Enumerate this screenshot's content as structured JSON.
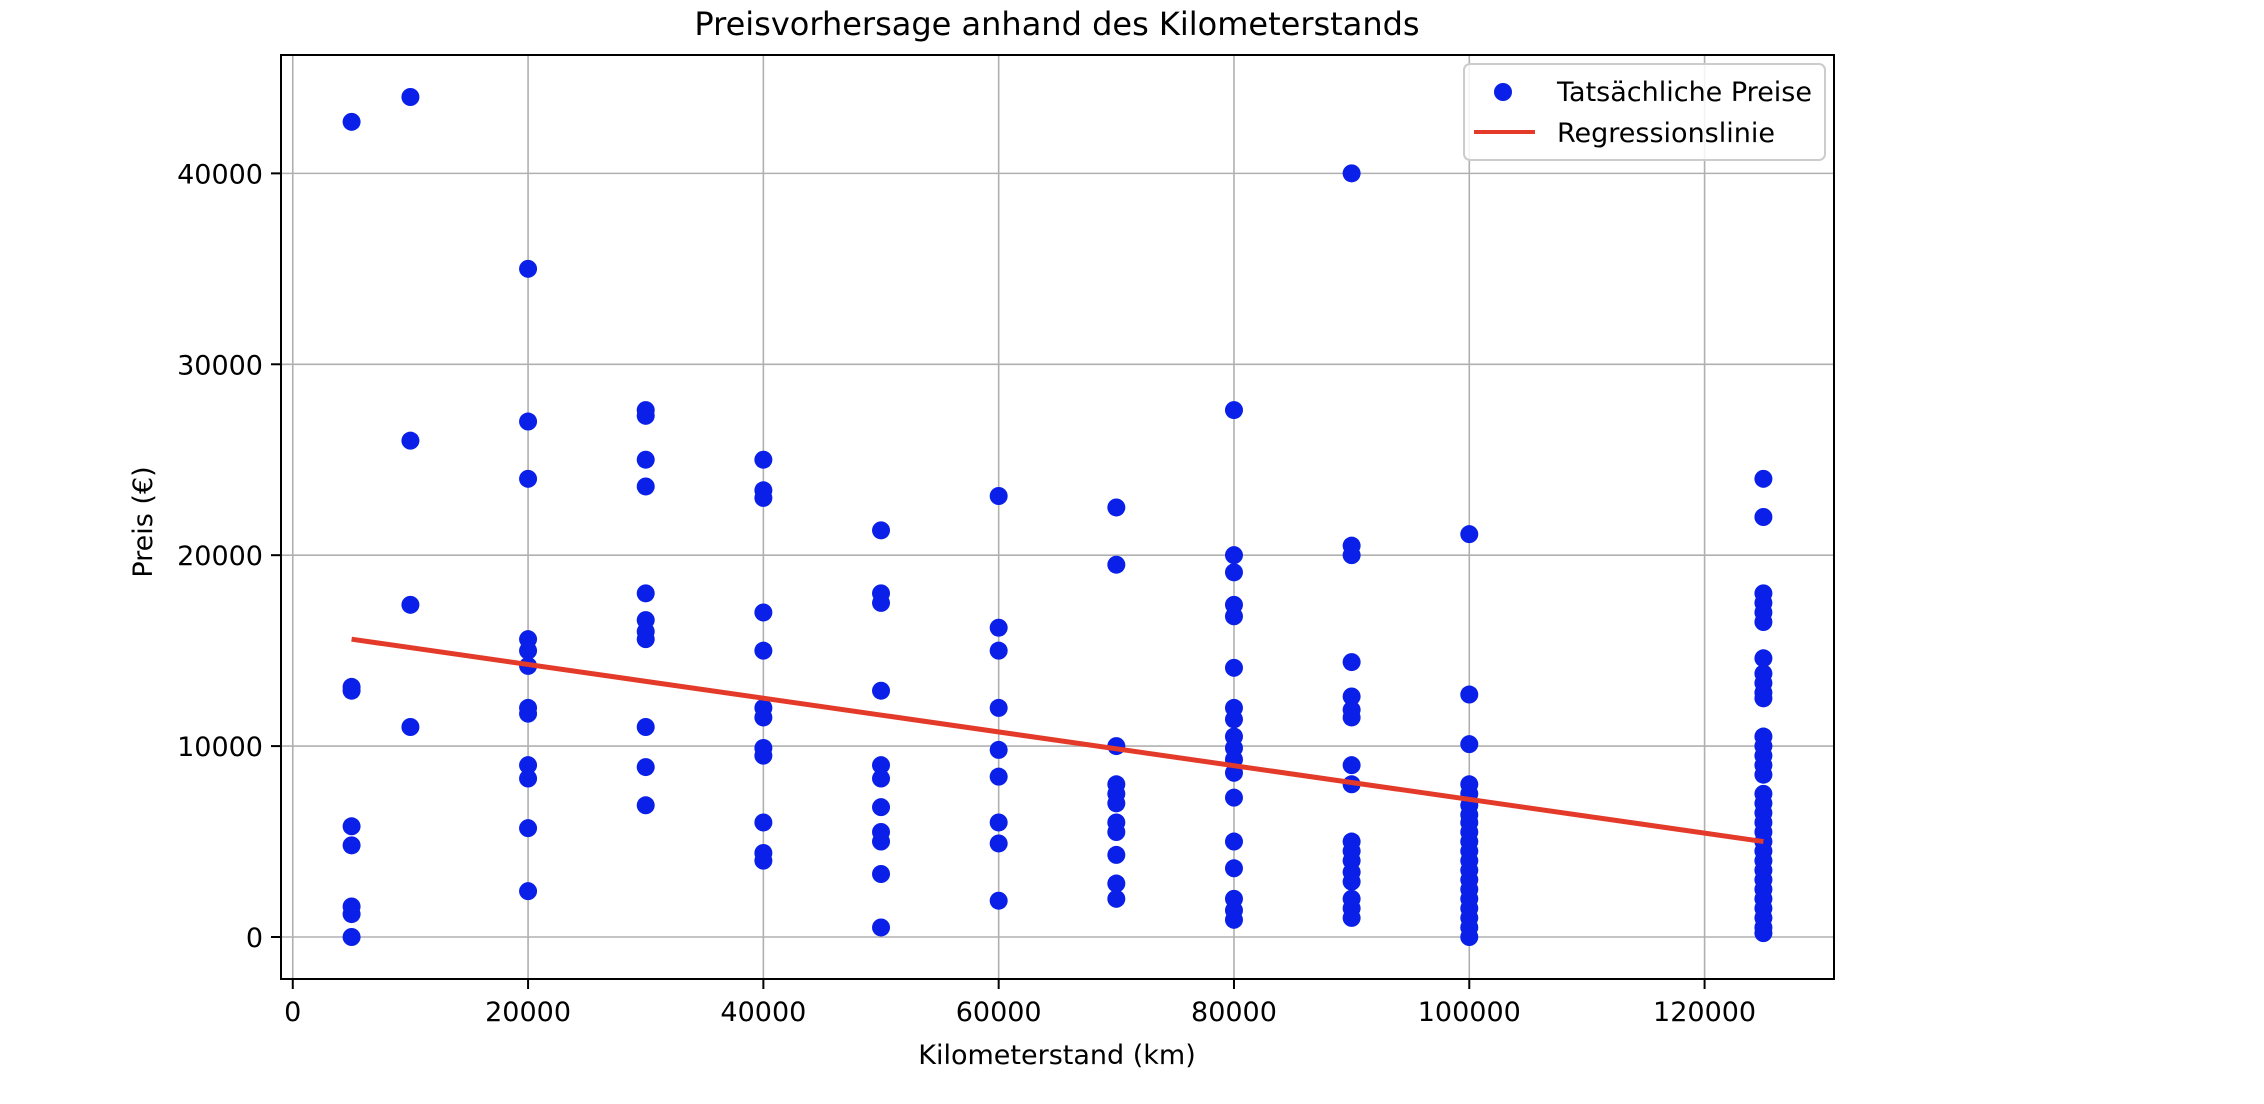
{
  "chart_data": {
    "type": "scatter",
    "title": "Preisvorhersage anhand des Kilometerstands",
    "xlabel": "Kilometerstand (km)",
    "ylabel": "Preis (€)",
    "xlim": [
      -1000,
      131000
    ],
    "ylim": [
      -2200,
      46200
    ],
    "xticks": [
      0,
      20000,
      40000,
      60000,
      80000,
      100000,
      120000
    ],
    "yticks": [
      0,
      10000,
      20000,
      30000,
      40000
    ],
    "xtick_labels": [
      "0",
      "20000",
      "40000",
      "60000",
      "80000",
      "100000",
      "120000"
    ],
    "ytick_labels": [
      "0",
      "10000",
      "20000",
      "30000",
      "40000"
    ],
    "grid": true,
    "legend_position": "top-right",
    "colors": {
      "scatter": "#0a1fe8",
      "regression": "#e33a2a"
    },
    "series": [
      {
        "name": "Tatsächliche Preise",
        "type": "scatter",
        "points": [
          [
            5000,
            42700
          ],
          [
            5000,
            13100
          ],
          [
            5000,
            12900
          ],
          [
            5000,
            5800
          ],
          [
            5000,
            4800
          ],
          [
            5000,
            1600
          ],
          [
            5000,
            1200
          ],
          [
            5000,
            0
          ],
          [
            10000,
            44000
          ],
          [
            10000,
            26000
          ],
          [
            10000,
            17400
          ],
          [
            10000,
            11000
          ],
          [
            20000,
            35000
          ],
          [
            20000,
            27000
          ],
          [
            20000,
            24000
          ],
          [
            20000,
            15600
          ],
          [
            20000,
            15000
          ],
          [
            20000,
            14200
          ],
          [
            20000,
            12000
          ],
          [
            20000,
            11700
          ],
          [
            20000,
            9000
          ],
          [
            20000,
            8300
          ],
          [
            20000,
            5700
          ],
          [
            20000,
            2400
          ],
          [
            30000,
            27600
          ],
          [
            30000,
            27300
          ],
          [
            30000,
            25000
          ],
          [
            30000,
            23600
          ],
          [
            30000,
            18000
          ],
          [
            30000,
            16600
          ],
          [
            30000,
            16000
          ],
          [
            30000,
            15600
          ],
          [
            30000,
            11000
          ],
          [
            30000,
            8900
          ],
          [
            30000,
            6900
          ],
          [
            40000,
            25000
          ],
          [
            40000,
            23400
          ],
          [
            40000,
            23000
          ],
          [
            40000,
            17000
          ],
          [
            40000,
            15000
          ],
          [
            40000,
            12000
          ],
          [
            40000,
            11500
          ],
          [
            40000,
            9900
          ],
          [
            40000,
            9500
          ],
          [
            40000,
            6000
          ],
          [
            40000,
            4400
          ],
          [
            40000,
            4000
          ],
          [
            50000,
            21300
          ],
          [
            50000,
            18000
          ],
          [
            50000,
            17500
          ],
          [
            50000,
            12900
          ],
          [
            50000,
            9000
          ],
          [
            50000,
            8300
          ],
          [
            50000,
            6800
          ],
          [
            50000,
            5500
          ],
          [
            50000,
            5000
          ],
          [
            50000,
            3300
          ],
          [
            50000,
            500
          ],
          [
            60000,
            23100
          ],
          [
            60000,
            16200
          ],
          [
            60000,
            15000
          ],
          [
            60000,
            12000
          ],
          [
            60000,
            9800
          ],
          [
            60000,
            8400
          ],
          [
            60000,
            6000
          ],
          [
            60000,
            4900
          ],
          [
            60000,
            1900
          ],
          [
            70000,
            22500
          ],
          [
            70000,
            19500
          ],
          [
            70000,
            10000
          ],
          [
            70000,
            8000
          ],
          [
            70000,
            7500
          ],
          [
            70000,
            7000
          ],
          [
            70000,
            6000
          ],
          [
            70000,
            5500
          ],
          [
            70000,
            4300
          ],
          [
            70000,
            2800
          ],
          [
            70000,
            2000
          ],
          [
            80000,
            27600
          ],
          [
            80000,
            20000
          ],
          [
            80000,
            19100
          ],
          [
            80000,
            17400
          ],
          [
            80000,
            16800
          ],
          [
            80000,
            14100
          ],
          [
            80000,
            12000
          ],
          [
            80000,
            11400
          ],
          [
            80000,
            10500
          ],
          [
            80000,
            9900
          ],
          [
            80000,
            9300
          ],
          [
            80000,
            8600
          ],
          [
            80000,
            7300
          ],
          [
            80000,
            5000
          ],
          [
            80000,
            3600
          ],
          [
            80000,
            2000
          ],
          [
            80000,
            1400
          ],
          [
            80000,
            900
          ],
          [
            90000,
            40000
          ],
          [
            90000,
            20500
          ],
          [
            90000,
            20000
          ],
          [
            90000,
            14400
          ],
          [
            90000,
            12600
          ],
          [
            90000,
            11900
          ],
          [
            90000,
            11500
          ],
          [
            90000,
            9000
          ],
          [
            90000,
            8000
          ],
          [
            90000,
            5000
          ],
          [
            90000,
            4500
          ],
          [
            90000,
            4000
          ],
          [
            90000,
            3400
          ],
          [
            90000,
            2900
          ],
          [
            90000,
            2000
          ],
          [
            90000,
            1500
          ],
          [
            90000,
            1000
          ],
          [
            100000,
            21100
          ],
          [
            100000,
            12700
          ],
          [
            100000,
            10100
          ],
          [
            100000,
            8000
          ],
          [
            100000,
            7500
          ],
          [
            100000,
            6900
          ],
          [
            100000,
            6400
          ],
          [
            100000,
            6000
          ],
          [
            100000,
            5500
          ],
          [
            100000,
            5000
          ],
          [
            100000,
            4500
          ],
          [
            100000,
            4000
          ],
          [
            100000,
            3500
          ],
          [
            100000,
            3000
          ],
          [
            100000,
            2500
          ],
          [
            100000,
            2000
          ],
          [
            100000,
            1500
          ],
          [
            100000,
            1000
          ],
          [
            100000,
            500
          ],
          [
            100000,
            0
          ],
          [
            125000,
            24000
          ],
          [
            125000,
            22000
          ],
          [
            125000,
            18000
          ],
          [
            125000,
            17500
          ],
          [
            125000,
            17000
          ],
          [
            125000,
            16500
          ],
          [
            125000,
            14600
          ],
          [
            125000,
            13800
          ],
          [
            125000,
            13300
          ],
          [
            125000,
            12800
          ],
          [
            125000,
            12500
          ],
          [
            125000,
            10500
          ],
          [
            125000,
            10000
          ],
          [
            125000,
            9500
          ],
          [
            125000,
            9000
          ],
          [
            125000,
            8500
          ],
          [
            125000,
            7500
          ],
          [
            125000,
            7000
          ],
          [
            125000,
            6500
          ],
          [
            125000,
            6000
          ],
          [
            125000,
            5500
          ],
          [
            125000,
            5000
          ],
          [
            125000,
            4500
          ],
          [
            125000,
            4000
          ],
          [
            125000,
            3500
          ],
          [
            125000,
            3000
          ],
          [
            125000,
            2500
          ],
          [
            125000,
            2000
          ],
          [
            125000,
            1500
          ],
          [
            125000,
            1000
          ],
          [
            125000,
            500
          ],
          [
            125000,
            200
          ]
        ]
      },
      {
        "name": "Regressionslinie",
        "type": "line",
        "points": [
          [
            5000,
            15600
          ],
          [
            125000,
            5000
          ]
        ]
      }
    ]
  }
}
